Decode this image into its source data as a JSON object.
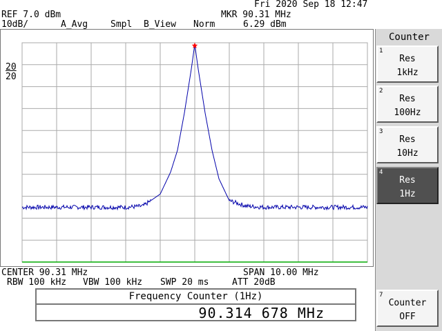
{
  "status": {
    "datetime": "Fri 2020 Sep 18 12:47"
  },
  "header": {
    "ref": "REF 7.0 dBm",
    "scale": "10dB/",
    "trace_a": "A_Avg",
    "sample": "Smpl",
    "trace_b": "B_View",
    "detector": "Norm",
    "marker_freq": "MKR 90.31 MHz",
    "marker_level": "6.29 dBm"
  },
  "side_labels": {
    "top": "20",
    "bottom": "20"
  },
  "footer": {
    "center": "CENTER 90.31 MHz",
    "span": "SPAN 10.00 MHz",
    "rbw": "RBW 100 kHz",
    "vbw": "VBW 100 kHz",
    "swp": "SWP 20 ms",
    "att": "ATT 20dB"
  },
  "counter": {
    "title": "Frequency Counter (1Hz)",
    "value": "90.314 678 MHz"
  },
  "softkeys": {
    "panel_title": "Counter",
    "items": [
      {
        "num": "1",
        "line1": "Res",
        "line2": "1kHz",
        "active": false
      },
      {
        "num": "2",
        "line1": "Res",
        "line2": "100Hz",
        "active": false
      },
      {
        "num": "3",
        "line1": "Res",
        "line2": "10Hz",
        "active": false
      },
      {
        "num": "4",
        "line1": "Res",
        "line2": "1Hz",
        "active": true
      },
      {
        "num": "7",
        "line1": "Counter",
        "line2": "OFF",
        "active": false
      }
    ]
  },
  "colors": {
    "trace": "#0000aa",
    "grid": "#aaaaaa",
    "baseline": "#00aa00",
    "marker": "#ff0000"
  },
  "chart_data": {
    "type": "line",
    "x_range_mhz": [
      85.31,
      95.31
    ],
    "y_range_dbm": [
      -93,
      7
    ],
    "grid": true,
    "marker": {
      "x_mhz": 90.31,
      "y_dbm": 6.29
    },
    "noise_floor_dbm": -68,
    "series": [
      {
        "x": [
          85.31,
          87.31,
          88.31,
          88.81,
          89.31,
          89.61,
          89.81,
          90.01,
          90.21,
          90.31,
          90.41,
          90.61,
          90.81,
          91.01,
          91.31,
          91.81,
          92.31,
          95.31
        ],
        "y": [
          -68,
          -68,
          -68,
          -67.5,
          -62,
          -52,
          -42,
          -25,
          -5,
          6.29,
          -5,
          -25,
          -42,
          -55,
          -65,
          -67.5,
          -68,
          -68
        ]
      }
    ]
  }
}
